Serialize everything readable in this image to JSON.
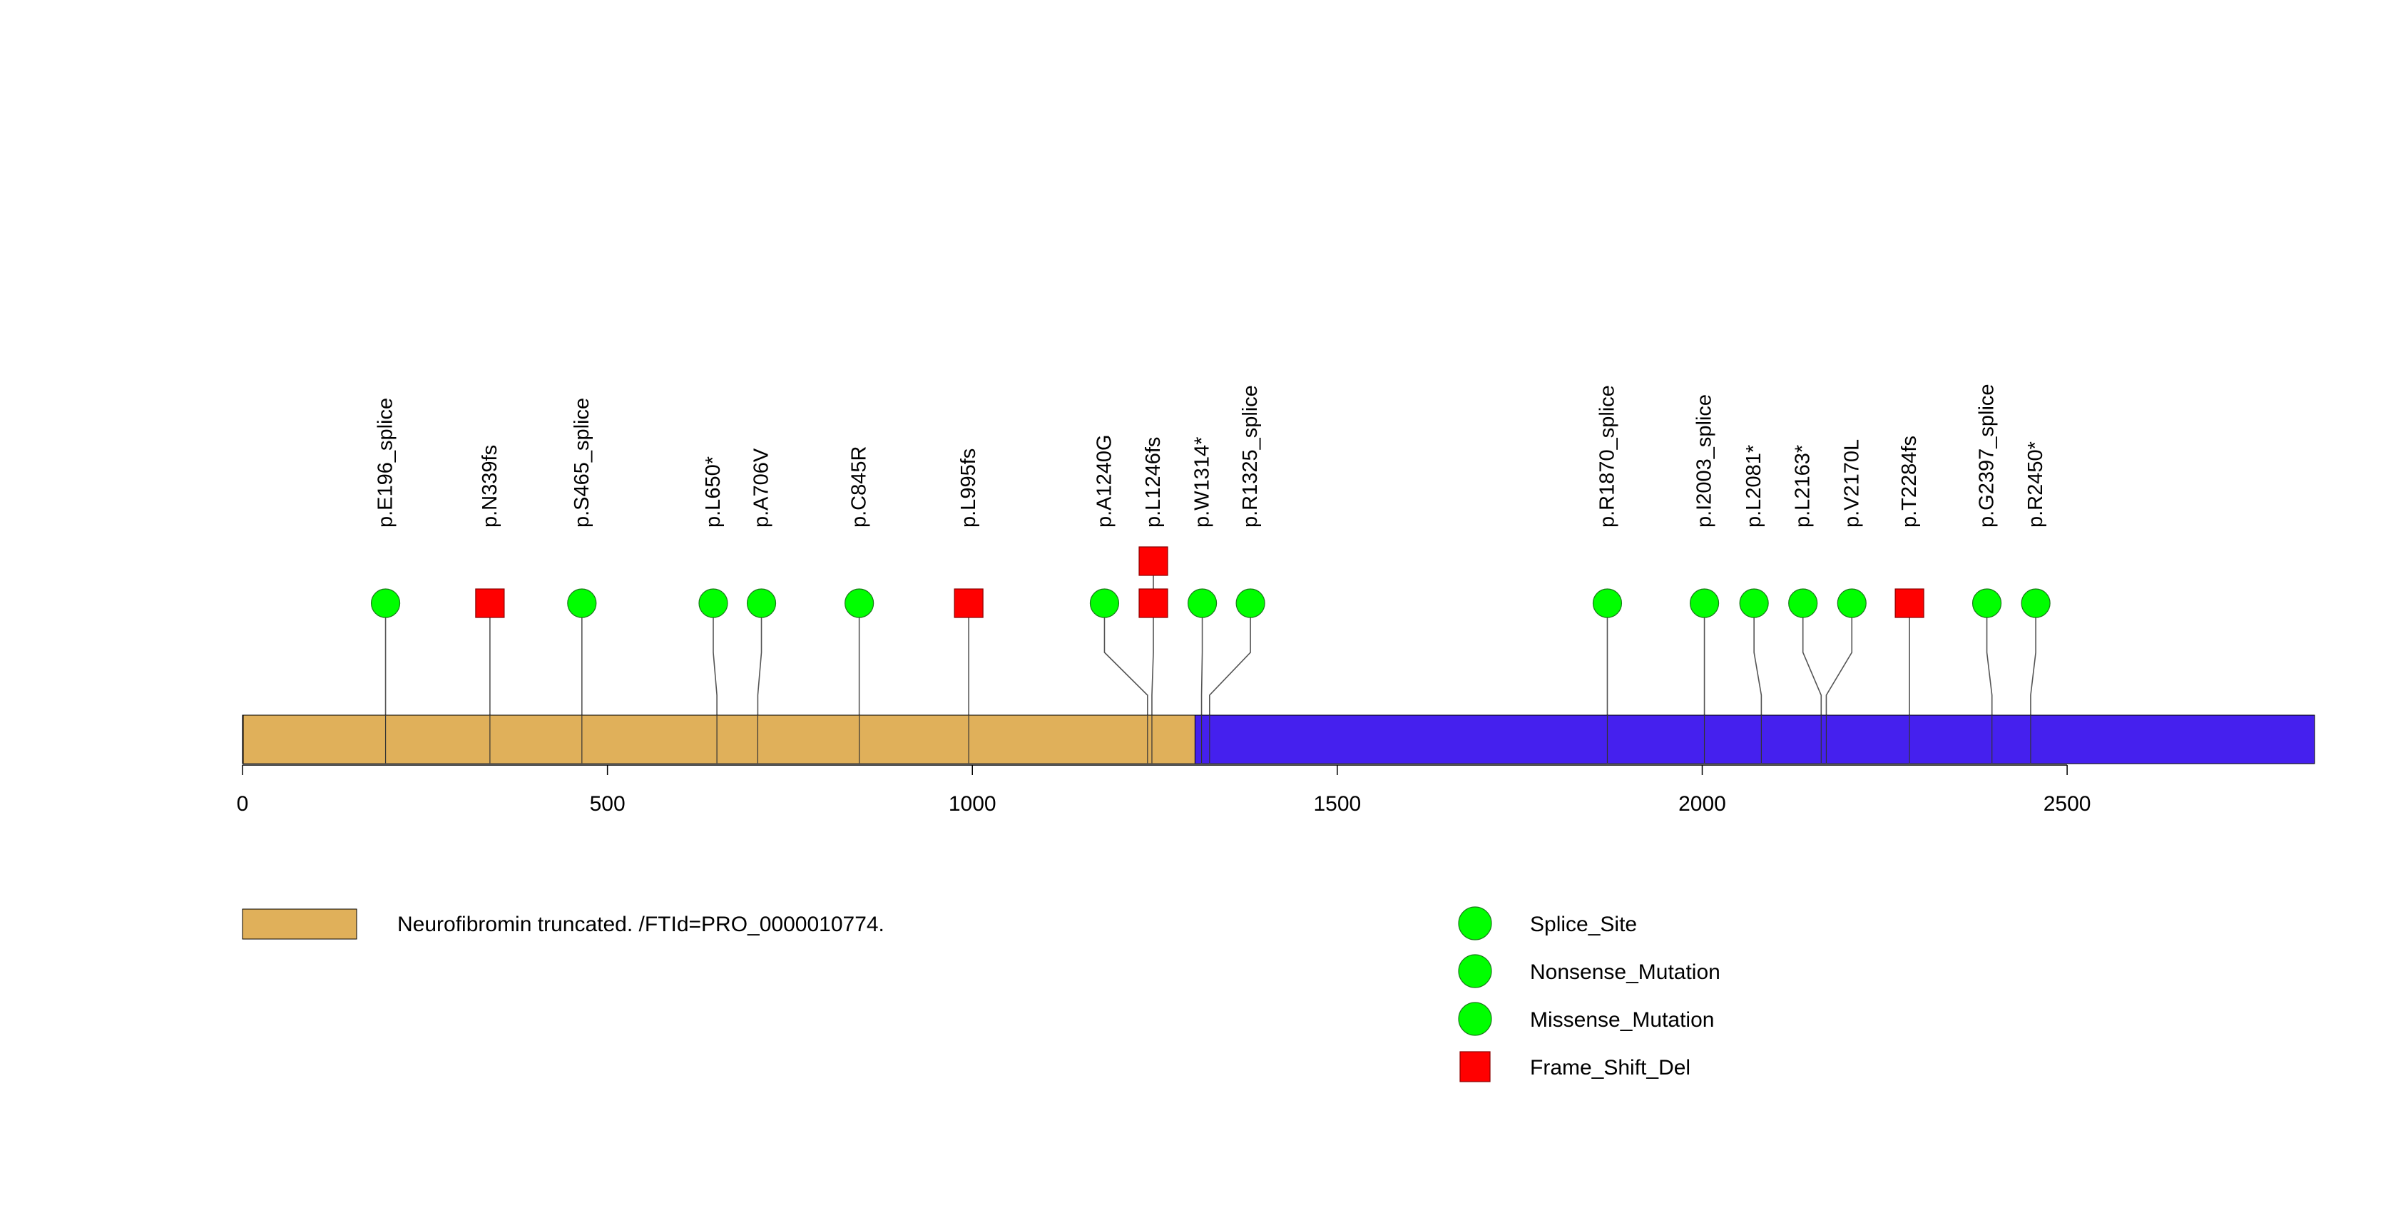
{
  "chart_data": {
    "type": "lollipop",
    "protein_length": 2839,
    "xlim": [
      0,
      2839
    ],
    "axis": {
      "ticks": [
        0,
        500,
        1000,
        1500,
        2000,
        2500
      ]
    },
    "domains": [
      {
        "name": "Neurofibromin truncated. /FTId=PRO_0000010774.",
        "start": 1,
        "end": 1305,
        "color": "#E0B05A"
      }
    ],
    "backbone_color": "#4520EE",
    "mutations": [
      {
        "label": "p.E196_splice",
        "pos": 196,
        "label_pos": 196,
        "type": "Splice_Site",
        "count": 1
      },
      {
        "label": "p.N339fs",
        "pos": 339,
        "label_pos": 339,
        "type": "Frame_Shift_Del",
        "count": 1
      },
      {
        "label": "p.S465_splice",
        "pos": 465,
        "label_pos": 465,
        "type": "Splice_Site",
        "count": 1
      },
      {
        "label": "p.L650*",
        "pos": 650,
        "label_pos": 645,
        "type": "Nonsense_Mutation",
        "count": 1
      },
      {
        "label": "p.A706V",
        "pos": 706,
        "label_pos": 711,
        "type": "Missense_Mutation",
        "count": 1
      },
      {
        "label": "p.C845R",
        "pos": 845,
        "label_pos": 845,
        "type": "Missense_Mutation",
        "count": 1
      },
      {
        "label": "p.L995fs",
        "pos": 995,
        "label_pos": 995,
        "type": "Frame_Shift_Del",
        "count": 1
      },
      {
        "label": "p.A1240G",
        "pos": 1240,
        "label_pos": 1181,
        "type": "Missense_Mutation",
        "count": 1
      },
      {
        "label": "p.L1246fs",
        "pos": 1246,
        "label_pos": 1248,
        "type": "Frame_Shift_Del",
        "count": 2
      },
      {
        "label": "p.W1314*",
        "pos": 1314,
        "label_pos": 1315,
        "type": "Nonsense_Mutation",
        "count": 1
      },
      {
        "label": "p.R1325_splice",
        "pos": 1325,
        "label_pos": 1381,
        "type": "Splice_Site",
        "count": 1
      },
      {
        "label": "p.R1870_splice",
        "pos": 1870,
        "label_pos": 1870,
        "type": "Splice_Site",
        "count": 1
      },
      {
        "label": "p.I2003_splice",
        "pos": 2003,
        "label_pos": 2003,
        "type": "Splice_Site",
        "count": 1
      },
      {
        "label": "p.L2081*",
        "pos": 2081,
        "label_pos": 2071,
        "type": "Nonsense_Mutation",
        "count": 1
      },
      {
        "label": "p.L2163*",
        "pos": 2163,
        "label_pos": 2138,
        "type": "Nonsense_Mutation",
        "count": 1
      },
      {
        "label": "p.V2170L",
        "pos": 2170,
        "label_pos": 2205,
        "type": "Missense_Mutation",
        "count": 1
      },
      {
        "label": "p.T2284fs",
        "pos": 2284,
        "label_pos": 2284,
        "type": "Frame_Shift_Del",
        "count": 1
      },
      {
        "label": "p.G2397_splice",
        "pos": 2397,
        "label_pos": 2390,
        "type": "Splice_Site",
        "count": 1
      },
      {
        "label": "p.R2450*",
        "pos": 2450,
        "label_pos": 2457,
        "type": "Nonsense_Mutation",
        "count": 1
      }
    ],
    "legend": [
      {
        "label": "Splice_Site",
        "shape": "circle",
        "color": "#00FF00"
      },
      {
        "label": "Nonsense_Mutation",
        "shape": "circle",
        "color": "#00FF00"
      },
      {
        "label": "Missense_Mutation",
        "shape": "circle",
        "color": "#00FF00"
      },
      {
        "label": "Frame_Shift_Del",
        "shape": "square",
        "color": "#FF0000"
      }
    ],
    "colors": {
      "circle": "#00FF00",
      "square": "#FF0000"
    }
  }
}
